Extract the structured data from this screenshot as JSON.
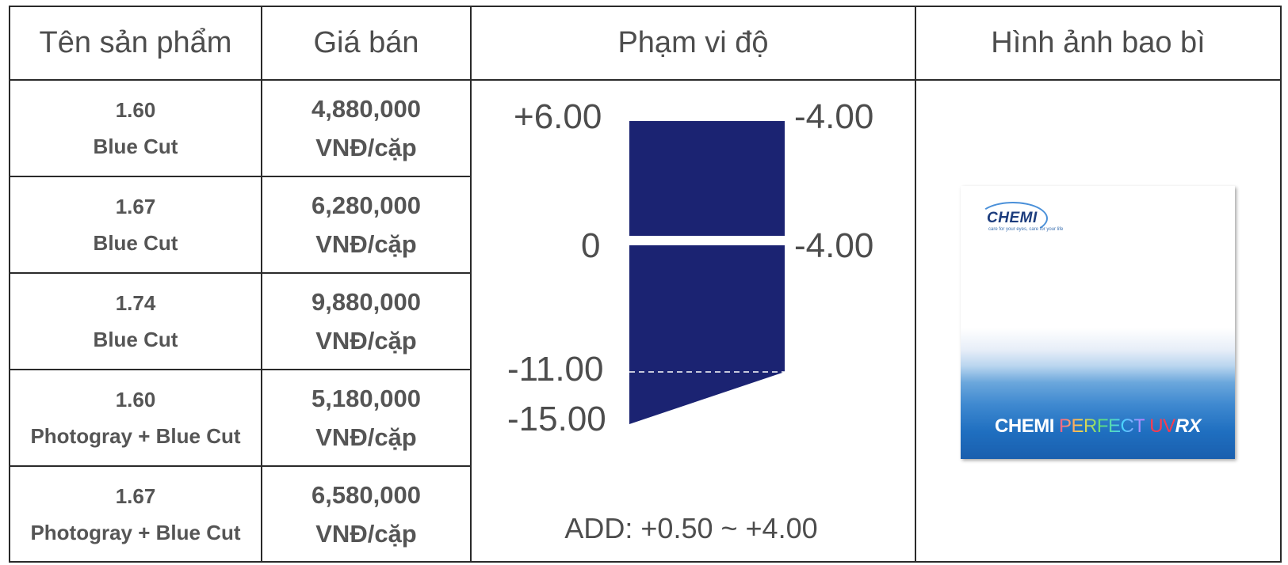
{
  "headers": [
    "Tên sản phẩm",
    "Giá bán",
    "Phạm vi độ",
    "Hình ảnh bao bì"
  ],
  "rows": [
    {
      "index": "1.60",
      "type": "Blue Cut",
      "price": "4,880,000",
      "unit": "VNĐ/cặp"
    },
    {
      "index": "1.67",
      "type": "Blue Cut",
      "price": "6,280,000",
      "unit": "VNĐ/cặp"
    },
    {
      "index": "1.74",
      "type": "Blue Cut",
      "price": "9,880,000",
      "unit": "VNĐ/cặp"
    },
    {
      "index": "1.60",
      "type": "Photogray + Blue Cut",
      "price": "5,180,000",
      "unit": "VNĐ/cặp"
    },
    {
      "index": "1.67",
      "type": "Photogray + Blue Cut",
      "price": "6,580,000",
      "unit": "VNĐ/cặp"
    }
  ],
  "range": {
    "sph_top": "+6.00",
    "sph_mid": "0",
    "sph_low": "-11.00",
    "sph_bottom": "-15.00",
    "cyl_top": "-4.00",
    "cyl_mid": "-4.00",
    "add": "ADD: +0.50 ~ +4.00",
    "fill_color": "#1b2372"
  },
  "package": {
    "brand": "CHEMI",
    "tagline": "care for your eyes, care for your life",
    "title_part1": "CHEMI ",
    "title_part2": "PERFECT",
    "title_part3": " UV",
    "title_part4": "RX"
  }
}
